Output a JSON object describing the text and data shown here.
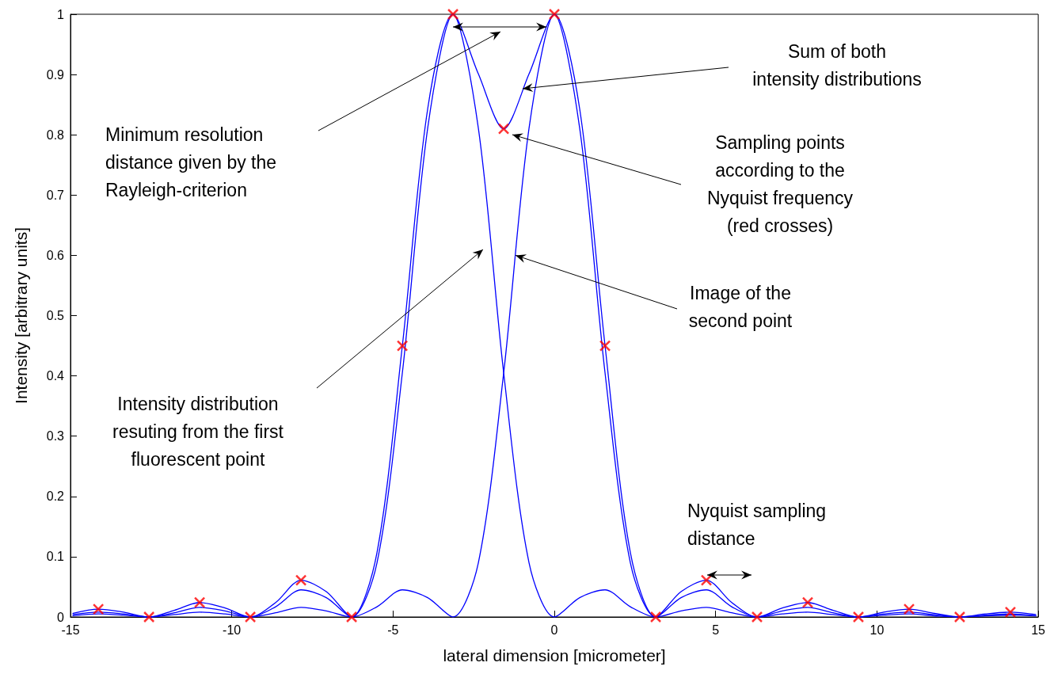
{
  "chart_data": {
    "type": "line",
    "xlabel": "lateral dimension [micrometer]",
    "ylabel": "Intensity [arbitrary units]",
    "xlim": [
      -15,
      15
    ],
    "xticks": [
      -15,
      -10,
      -5,
      0,
      5,
      10,
      15
    ],
    "ylim": [
      0,
      1
    ],
    "yticks": [
      0,
      0.1,
      0.2,
      0.3,
      0.4,
      0.5,
      0.6,
      0.7,
      0.8,
      0.9,
      1
    ],
    "grid": false,
    "marker": "none",
    "line_style": "solid",
    "x": [
      -14.923,
      -14.137,
      -13.352,
      -12.566,
      -11.781,
      -10.996,
      -10.21,
      -9.425,
      -8.639,
      -7.854,
      -7.069,
      -6.283,
      -5.498,
      -4.712,
      -3.927,
      -3.142,
      -2.356,
      -1.571,
      -0.785,
      0,
      0.785,
      1.571,
      2.356,
      3.142,
      3.927,
      4.712,
      5.498,
      6.283,
      7.069,
      7.854,
      8.639,
      9.425,
      10.21,
      10.996,
      11.781,
      12.566,
      13.352,
      14.137,
      14.923
    ],
    "series": [
      {
        "color": "#0000ff",
        "values": [
          0.004,
          0.008,
          0.005,
          0,
          0.007,
          0.016,
          0.01,
          0,
          0.017,
          0.045,
          0.032,
          0,
          0.09,
          0.405,
          0.811,
          1,
          0.811,
          0.405,
          0.09,
          0,
          0.032,
          0.045,
          0.017,
          0,
          0.01,
          0.016,
          0.007,
          0,
          0.005,
          0.008,
          0.004,
          0,
          0.003,
          0.005,
          0.002,
          0,
          0.002,
          0.003,
          0.002
        ]
      },
      {
        "color": "#0000ff",
        "values": [
          0.002,
          0.005,
          0.003,
          0,
          0.004,
          0.008,
          0.005,
          0,
          0.007,
          0.016,
          0.01,
          0,
          0.017,
          0.045,
          0.032,
          0,
          0.09,
          0.405,
          0.811,
          1,
          0.811,
          0.405,
          0.09,
          0,
          0.032,
          0.045,
          0.017,
          0,
          0.01,
          0.016,
          0.007,
          0,
          0.005,
          0.008,
          0.004,
          0,
          0.003,
          0.005,
          0.002
        ]
      },
      {
        "color": "#0000ff",
        "values": [
          0.006,
          0.013,
          0.008,
          0,
          0.011,
          0.024,
          0.015,
          0,
          0.024,
          0.061,
          0.042,
          0,
          0.107,
          0.45,
          0.843,
          1,
          0.901,
          0.81,
          0.901,
          1,
          0.843,
          0.45,
          0.107,
          0,
          0.042,
          0.061,
          0.024,
          0,
          0.015,
          0.024,
          0.011,
          0,
          0.008,
          0.013,
          0.006,
          0,
          0.005,
          0.008,
          0.004
        ]
      },
      {
        "type": "scatter",
        "marker": "cross",
        "color": "#ff0000",
        "x": [
          -14.137,
          -12.566,
          -10.996,
          -9.425,
          -7.854,
          -6.283,
          -4.712,
          -3.142,
          -1.571,
          0,
          1.571,
          3.142,
          4.712,
          6.283,
          7.854,
          9.425,
          10.996,
          12.566,
          14.137
        ],
        "values": [
          0.013,
          0,
          0.024,
          0,
          0.061,
          0,
          0.45,
          1,
          0.81,
          1,
          0.45,
          0,
          0.061,
          0,
          0.024,
          0,
          0.013,
          0,
          0.008
        ]
      }
    ],
    "annotations": [
      "Minimum resolution\ndistance given by the\nRayleigh-criterion",
      "Sum of both\nintensity distributions",
      "Sampling points\naccording to the\nNyquist frequency\n(red crosses)",
      {
        "text": "Image of the\nsecond point",
        "x": -1.2,
        "y": 0.6
      },
      "Intensity distribution\nresuting from the first\nfluorescent point",
      "Nyquist sampling\ndistance"
    ]
  }
}
